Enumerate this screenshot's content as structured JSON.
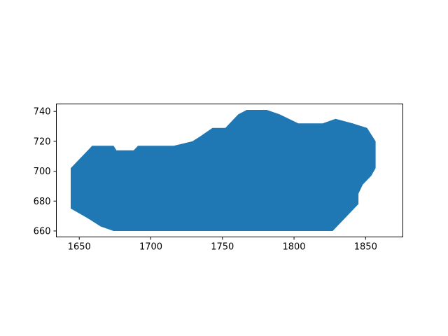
{
  "chart_data": {
    "type": "area",
    "title": "",
    "xlabel": "",
    "ylabel": "",
    "xlim": [
      1634,
      1876
    ],
    "ylim": [
      656,
      745
    ],
    "xticks": [
      1650,
      1700,
      1750,
      1800,
      1850
    ],
    "yticks": [
      660,
      680,
      700,
      720,
      740
    ],
    "xtick_labels": [
      "1650",
      "1700",
      "1750",
      "1800",
      "1850"
    ],
    "ytick_labels": [
      "660",
      "680",
      "700",
      "720",
      "740"
    ],
    "grid": false,
    "legend": "none",
    "fill_color": "#1f77b4",
    "polygon": [
      [
        1644,
        702
      ],
      [
        1659,
        717
      ],
      [
        1674,
        717
      ],
      [
        1676,
        714
      ],
      [
        1688,
        714
      ],
      [
        1691,
        717
      ],
      [
        1716,
        717
      ],
      [
        1729,
        720
      ],
      [
        1734,
        723
      ],
      [
        1743,
        729
      ],
      [
        1752,
        729
      ],
      [
        1761,
        738
      ],
      [
        1767,
        741
      ],
      [
        1781,
        741
      ],
      [
        1790,
        738
      ],
      [
        1803,
        732
      ],
      [
        1820,
        732
      ],
      [
        1829,
        735
      ],
      [
        1841,
        732
      ],
      [
        1851,
        729
      ],
      [
        1857,
        720
      ],
      [
        1857,
        702
      ],
      [
        1854,
        697
      ],
      [
        1848,
        691
      ],
      [
        1845,
        685
      ],
      [
        1845,
        678
      ],
      [
        1827,
        660
      ],
      [
        1674,
        660
      ],
      [
        1665,
        663
      ],
      [
        1655,
        669
      ],
      [
        1644,
        675
      ]
    ]
  }
}
